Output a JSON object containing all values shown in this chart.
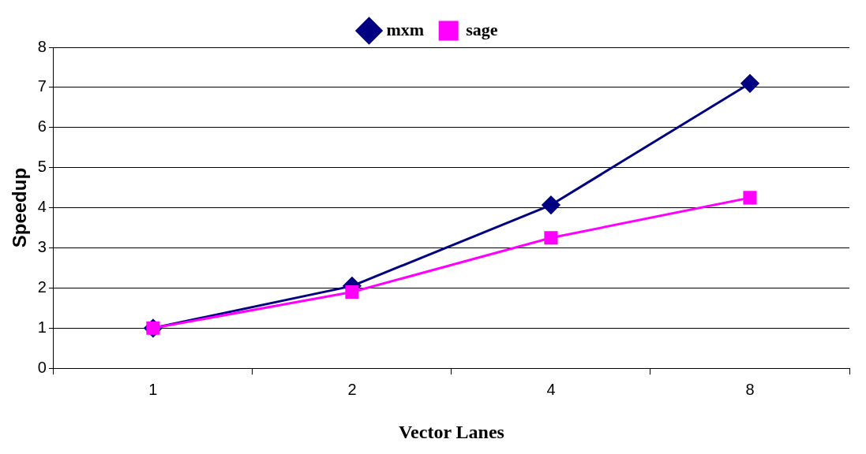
{
  "chart_data": {
    "type": "line",
    "xlabel": "Vector Lanes",
    "ylabel": "Speedup",
    "categories": [
      "1",
      "2",
      "4",
      "8"
    ],
    "series": [
      {
        "name": "mxm",
        "color": "#000080",
        "marker": "diamond",
        "values": [
          1,
          2.05,
          4.07,
          7.1
        ]
      },
      {
        "name": "sage",
        "color": "#ff00ff",
        "marker": "square",
        "values": [
          1,
          1.9,
          3.25,
          4.25
        ]
      }
    ],
    "ylim": [
      0,
      8
    ],
    "yticks": [
      0,
      1,
      2,
      3,
      4,
      5,
      6,
      7,
      8
    ],
    "grid": "y",
    "legend": "top",
    "line_style": "solid"
  }
}
